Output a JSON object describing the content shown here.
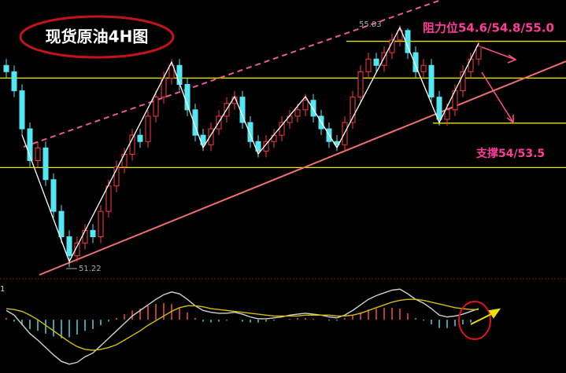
{
  "chart_data": [
    {
      "type": "candlestick",
      "title": "现货原油4H图",
      "resistance_label": "阻力位54.6/54.8/55.0",
      "support_label": "支撑54/53.5",
      "max_label": "55.03",
      "min_label": "51.22",
      "ylim": [
        51.1,
        55.43
      ],
      "up_color": "#ff3b3b",
      "down_color": "#54e6f2",
      "level_color": "#e6e600",
      "levels": [
        54.78,
        54.2,
        53.49,
        52.79
      ],
      "open": [
        54.4,
        54.3,
        54.0,
        53.4,
        52.9,
        53.1,
        52.6,
        52.1,
        51.7,
        51.4,
        51.6,
        51.8,
        51.7,
        52.1,
        52.5,
        52.8,
        53.0,
        53.3,
        53.2,
        53.6,
        53.9,
        54.2,
        54.4,
        54.1,
        53.7,
        53.3,
        53.15,
        53.4,
        53.6,
        53.8,
        53.9,
        53.5,
        53.2,
        53.05,
        53.2,
        53.3,
        53.5,
        53.6,
        53.7,
        53.85,
        53.6,
        53.4,
        53.2,
        53.15,
        53.5,
        53.9,
        54.3,
        54.5,
        54.4,
        54.6,
        54.8,
        54.95,
        54.6,
        54.3,
        54.4,
        53.9,
        53.55,
        53.7,
        54.0,
        54.3,
        54.5
      ],
      "high": [
        54.5,
        54.4,
        54.1,
        53.5,
        53.2,
        53.2,
        52.7,
        52.2,
        51.8,
        51.7,
        51.9,
        51.9,
        52.2,
        52.6,
        52.9,
        53.1,
        53.4,
        53.4,
        53.7,
        54.0,
        54.3,
        54.5,
        54.5,
        54.2,
        53.8,
        53.4,
        53.5,
        53.7,
        53.9,
        54.0,
        54.0,
        53.6,
        53.3,
        53.3,
        53.4,
        53.6,
        53.7,
        53.8,
        53.95,
        53.95,
        53.7,
        53.5,
        53.3,
        53.6,
        54.0,
        54.4,
        54.6,
        54.6,
        54.7,
        54.9,
        55.03,
        54.98,
        54.7,
        54.5,
        54.5,
        54.0,
        53.8,
        54.1,
        54.4,
        54.6,
        54.8
      ],
      "low": [
        54.2,
        53.9,
        53.3,
        52.8,
        52.8,
        52.5,
        52.0,
        51.6,
        51.22,
        51.3,
        51.5,
        51.6,
        51.6,
        52.0,
        52.4,
        52.7,
        52.9,
        53.1,
        53.1,
        53.5,
        53.8,
        54.1,
        54.0,
        53.6,
        53.2,
        53.05,
        53.05,
        53.3,
        53.5,
        53.7,
        53.4,
        53.1,
        52.95,
        52.95,
        53.1,
        53.2,
        53.4,
        53.5,
        53.6,
        53.5,
        53.3,
        53.1,
        53.05,
        53.05,
        53.4,
        53.8,
        54.2,
        54.3,
        54.3,
        54.5,
        54.7,
        54.5,
        54.2,
        54.2,
        53.8,
        53.45,
        53.45,
        53.6,
        53.9,
        54.2,
        54.4
      ],
      "close": [
        54.3,
        54.0,
        53.4,
        52.9,
        53.1,
        52.6,
        52.1,
        51.7,
        51.4,
        51.6,
        51.8,
        51.7,
        52.1,
        52.5,
        52.8,
        53.0,
        53.3,
        53.2,
        53.6,
        53.9,
        54.2,
        54.4,
        54.1,
        53.7,
        53.3,
        53.15,
        53.4,
        53.6,
        53.8,
        53.9,
        53.5,
        53.2,
        53.05,
        53.2,
        53.3,
        53.5,
        53.6,
        53.7,
        53.85,
        53.6,
        53.4,
        53.2,
        53.15,
        53.5,
        53.9,
        54.3,
        54.5,
        54.4,
        54.6,
        54.8,
        54.95,
        54.6,
        54.3,
        54.4,
        53.9,
        53.55,
        53.7,
        54.0,
        54.3,
        54.5,
        54.7
      ]
    },
    {
      "type": "macd",
      "label": "1",
      "ylim": [
        -0.55,
        0.4
      ],
      "histogram": [
        0.02,
        -0.02,
        -0.06,
        -0.1,
        -0.12,
        -0.15,
        -0.18,
        -0.2,
        -0.19,
        -0.16,
        -0.12,
        -0.1,
        -0.06,
        -0.02,
        0.02,
        0.06,
        0.1,
        0.12,
        0.15,
        0.17,
        0.18,
        0.17,
        0.13,
        0.08,
        0.02,
        -0.02,
        -0.03,
        -0.02,
        -0.01,
        0.0,
        -0.02,
        -0.03,
        -0.03,
        -0.02,
        -0.01,
        0.0,
        0.01,
        0.02,
        0.02,
        0.01,
        0.0,
        -0.01,
        -0.01,
        0.02,
        0.05,
        0.08,
        0.11,
        0.12,
        0.13,
        0.13,
        0.12,
        0.07,
        0.02,
        -0.01,
        -0.05,
        -0.09,
        -0.09,
        -0.07,
        -0.05,
        -0.03,
        -0.01
      ],
      "series": [
        {
          "color": "#d0d0d0",
          "values": [
            0.1,
            0.05,
            -0.05,
            -0.15,
            -0.22,
            -0.3,
            -0.38,
            -0.45,
            -0.48,
            -0.46,
            -0.4,
            -0.36,
            -0.28,
            -0.2,
            -0.12,
            -0.04,
            0.04,
            0.1,
            0.16,
            0.22,
            0.27,
            0.3,
            0.28,
            0.22,
            0.15,
            0.1,
            0.08,
            0.07,
            0.07,
            0.08,
            0.06,
            0.03,
            0.01,
            0.01,
            0.02,
            0.03,
            0.05,
            0.06,
            0.07,
            0.06,
            0.05,
            0.03,
            0.02,
            0.05,
            0.1,
            0.16,
            0.22,
            0.26,
            0.29,
            0.32,
            0.33,
            0.28,
            0.22,
            0.18,
            0.12,
            0.05,
            0.03,
            0.04,
            0.06,
            0.09,
            0.12
          ]
        },
        {
          "color": "#d4c000",
          "values": [
            0.12,
            0.11,
            0.09,
            0.05,
            0.0,
            -0.06,
            -0.12,
            -0.18,
            -0.24,
            -0.29,
            -0.32,
            -0.33,
            -0.32,
            -0.3,
            -0.27,
            -0.22,
            -0.17,
            -0.12,
            -0.06,
            -0.01,
            0.04,
            0.09,
            0.13,
            0.15,
            0.15,
            0.14,
            0.12,
            0.11,
            0.1,
            0.09,
            0.08,
            0.07,
            0.06,
            0.05,
            0.04,
            0.04,
            0.04,
            0.04,
            0.05,
            0.05,
            0.05,
            0.05,
            0.04,
            0.04,
            0.05,
            0.07,
            0.1,
            0.13,
            0.16,
            0.19,
            0.21,
            0.22,
            0.22,
            0.21,
            0.19,
            0.17,
            0.15,
            0.13,
            0.12,
            0.11,
            0.11
          ]
        }
      ],
      "up_color": "#ff4a4a",
      "down_color": "#4fd6e0"
    }
  ]
}
